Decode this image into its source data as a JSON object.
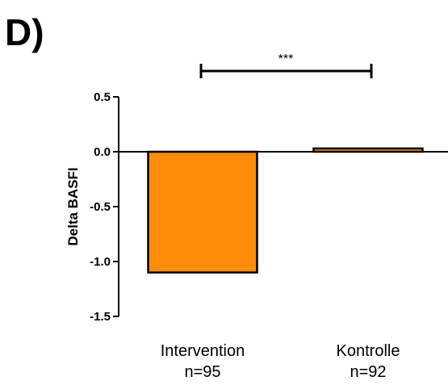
{
  "panel_label": "D)",
  "chart_data": {
    "type": "bar",
    "categories": [
      "Intervention",
      "Kontrolle"
    ],
    "category_sublabels": [
      "n=95",
      "n=92"
    ],
    "values": [
      -1.1,
      0.03
    ],
    "ylabel": "Delta BASFI",
    "xlabel": "",
    "ylim": [
      -1.5,
      0.5
    ],
    "yticks": [
      0.5,
      0.0,
      -0.5,
      -1.0,
      -1.5
    ],
    "ytick_labels": [
      "0.5",
      "0.0",
      "-0.5",
      "-1.0",
      "-1.5"
    ],
    "significance": {
      "label": "***",
      "between": [
        "Intervention",
        "Kontrolle"
      ]
    },
    "bar_color": "#ff8c0a",
    "edge_color": "#000000",
    "grid": false,
    "legend": "none"
  }
}
